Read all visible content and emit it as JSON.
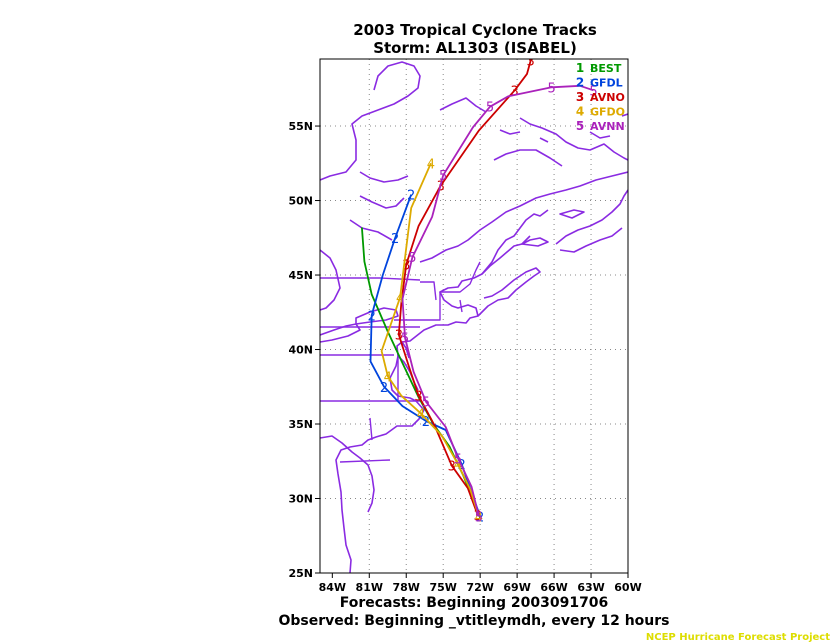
{
  "chart_data": {
    "type": "line",
    "title": "2003 Tropical Cyclone Tracks",
    "subtitle": "Storm: AL1303 (ISABEL)",
    "xlabel": "Forecasts: Beginning 2003091706",
    "footer": "Observed: Beginning _vtitleymdh, every 12 hours",
    "credit": "NCEP Hurricane Forecast Project",
    "x_ticks": [
      "84W",
      "81W",
      "78W",
      "75W",
      "72W",
      "69W",
      "66W",
      "63W",
      "60W"
    ],
    "y_ticks": [
      "25N",
      "30N",
      "35N",
      "40N",
      "45N",
      "50N",
      "55N"
    ],
    "x_range": [
      -85,
      -60
    ],
    "y_range": [
      25,
      59.5
    ],
    "grid": true,
    "legend_position": "top-right",
    "series": [
      {
        "name": "BEST",
        "marker": "1",
        "color": "#009900",
        "lon": [
          -72.0,
          -72.7,
          -73.4,
          -74.5,
          -75.8,
          -77.0,
          -78.2,
          -79.5,
          -80.8,
          -81.4,
          -81.6
        ],
        "lat": [
          28.7,
          30.2,
          31.6,
          33.5,
          35.0,
          36.8,
          38.9,
          41.2,
          43.7,
          45.9,
          48.2
        ]
      },
      {
        "name": "GFDL",
        "marker": "2",
        "color": "#0044dd",
        "lon": [
          -72.0,
          -72.7,
          -73.5,
          -74.8,
          -76.4,
          -78.3,
          -79.8,
          -80.9,
          -80.8,
          -79.9,
          -78.9,
          -77.6
        ],
        "lat": [
          28.8,
          30.4,
          32.3,
          34.6,
          35.2,
          36.2,
          37.5,
          39.2,
          42.3,
          45.0,
          47.5,
          50.4
        ]
      },
      {
        "name": "AVNO",
        "marker": "3",
        "color": "#cc0000",
        "lon": [
          -72.2,
          -73.0,
          -74.3,
          -75.7,
          -77.0,
          -77.8,
          -78.6,
          -78.4,
          -78.0,
          -77.0,
          -75.2,
          -72.1,
          -69.2,
          -68.2,
          -67.9
        ],
        "lat": [
          28.9,
          30.7,
          32.2,
          34.9,
          36.9,
          38.9,
          41.0,
          43.1,
          45.7,
          48.3,
          51.0,
          54.7,
          57.4,
          58.5,
          59.4
        ]
      },
      {
        "name": "GFDO",
        "marker": "4",
        "color": "#ddaa00",
        "lon": [
          -72.1,
          -72.8,
          -73.8,
          -75.1,
          -76.8,
          -78.4,
          -79.5,
          -80.0,
          -78.5,
          -77.6,
          -76.0
        ],
        "lat": [
          28.8,
          30.6,
          32.3,
          34.2,
          35.7,
          36.9,
          38.2,
          39.9,
          43.5,
          49.5,
          52.5
        ]
      },
      {
        "name": "AVNN",
        "marker": "5",
        "color": "#aa22bb",
        "lon": [
          -72.1,
          -72.7,
          -73.8,
          -74.8,
          -76.4,
          -77.4,
          -78.1,
          -78.3,
          -77.5,
          -75.9,
          -75.0,
          -72.6,
          -71.2,
          -69.7,
          -66.2,
          -63.9,
          -62.8
        ],
        "lat": [
          28.8,
          30.8,
          32.7,
          34.8,
          36.5,
          38.5,
          40.8,
          43.4,
          46.2,
          48.9,
          51.7,
          54.9,
          56.3,
          57.0,
          57.6,
          57.7,
          57.4
        ]
      }
    ]
  }
}
